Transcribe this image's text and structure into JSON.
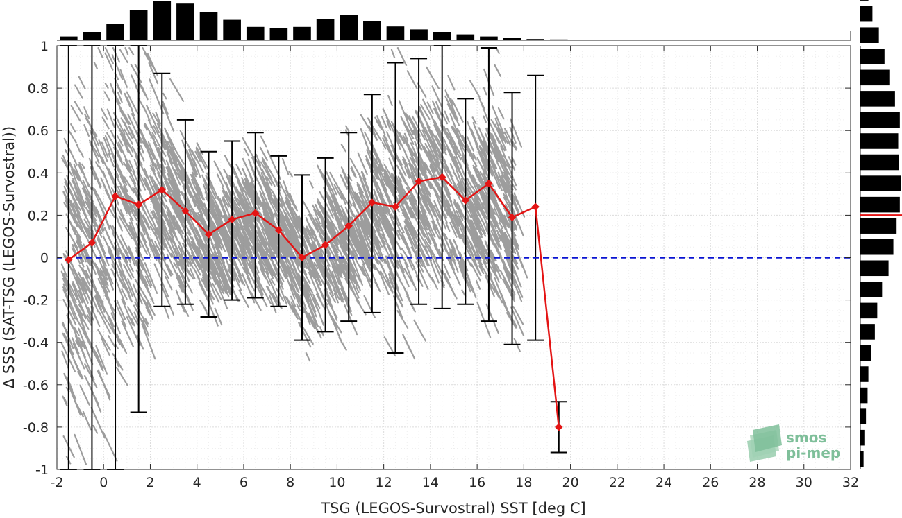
{
  "chart_data": {
    "type": "scatter",
    "xlabel": "TSG (LEGOS-Survostral) SST [deg C]",
    "ylabel": "Δ SSS (SAT-TSG (LEGOS-Survostral))",
    "xlim": [
      -2,
      32
    ],
    "ylim": [
      -1,
      1
    ],
    "x_ticks": [
      -2,
      0,
      2,
      4,
      6,
      8,
      10,
      12,
      14,
      16,
      18,
      20,
      22,
      24,
      26,
      28,
      30,
      32
    ],
    "y_ticks": [
      -1,
      -0.8,
      -0.6,
      -0.4,
      -0.2,
      0,
      0.2,
      0.4,
      0.6,
      0.8,
      1
    ],
    "x_tick_labels": [
      "-2",
      "0",
      "2",
      "4",
      "6",
      "8",
      "10",
      "12",
      "14",
      "16",
      "18",
      "20",
      "22",
      "24",
      "26",
      "28",
      "30",
      "32"
    ],
    "y_tick_labels": [
      "-1",
      "-0.8",
      "-0.6",
      "-0.4",
      "-0.2",
      "0",
      "0.2",
      "0.4",
      "0.6",
      "0.8",
      "1"
    ],
    "grid": true,
    "reference_line_y": 0,
    "bin_centers": [
      -1.5,
      -0.5,
      0.5,
      1.5,
      2.5,
      3.5,
      4.5,
      5.5,
      6.5,
      7.5,
      8.5,
      9.5,
      10.5,
      11.5,
      12.5,
      13.5,
      14.5,
      15.5,
      16.5,
      17.5,
      18.5,
      19.5
    ],
    "mean_values": [
      -0.01,
      0.07,
      0.29,
      0.25,
      0.32,
      0.22,
      0.11,
      0.18,
      0.21,
      0.13,
      0.0,
      0.06,
      0.15,
      0.26,
      0.24,
      0.36,
      0.38,
      0.27,
      0.35,
      0.19,
      0.24,
      -0.8
    ],
    "error_upper": [
      1.0,
      1.0,
      1.0,
      1.0,
      0.87,
      0.65,
      0.5,
      0.55,
      0.59,
      0.48,
      0.39,
      0.47,
      0.59,
      0.77,
      0.92,
      0.94,
      1.0,
      0.75,
      0.99,
      0.78,
      0.86,
      -0.68
    ],
    "error_lower": [
      -1.0,
      -1.0,
      -1.0,
      -0.73,
      -0.23,
      -0.22,
      -0.28,
      -0.2,
      -0.19,
      -0.23,
      -0.39,
      -0.35,
      -0.3,
      -0.26,
      -0.45,
      -0.22,
      -0.24,
      -0.22,
      -0.3,
      -0.41,
      -0.39,
      -0.92
    ],
    "top_histogram": {
      "bin_edges_start": -2,
      "bin_width": 1,
      "relative_heights": [
        0.09,
        0.2,
        0.4,
        0.72,
        0.94,
        0.88,
        0.68,
        0.49,
        0.32,
        0.29,
        0.32,
        0.51,
        0.6,
        0.45,
        0.33,
        0.26,
        0.2,
        0.14,
        0.09,
        0.05,
        0.03,
        0.02
      ]
    },
    "right_histogram": {
      "bin_edges_start": -1,
      "bin_width": 0.1,
      "relative_lengths": [
        0.08,
        0.1,
        0.14,
        0.18,
        0.2,
        0.26,
        0.36,
        0.42,
        0.54,
        0.7,
        0.82,
        0.9,
        0.98,
        1.0,
        0.96,
        0.94,
        0.98,
        0.86,
        0.72,
        0.6,
        0.46,
        0.3,
        0.2,
        0.12,
        0.04
      ],
      "mean_marker": 0.2
    },
    "colors": {
      "scatter": "#8c8c8c",
      "mean_line": "#e41414",
      "errorbar": "#000000",
      "zero_line": "#0a14d2",
      "histogram": "#000000"
    }
  },
  "logo": {
    "line1": "smos",
    "line2": "pi-mep"
  }
}
